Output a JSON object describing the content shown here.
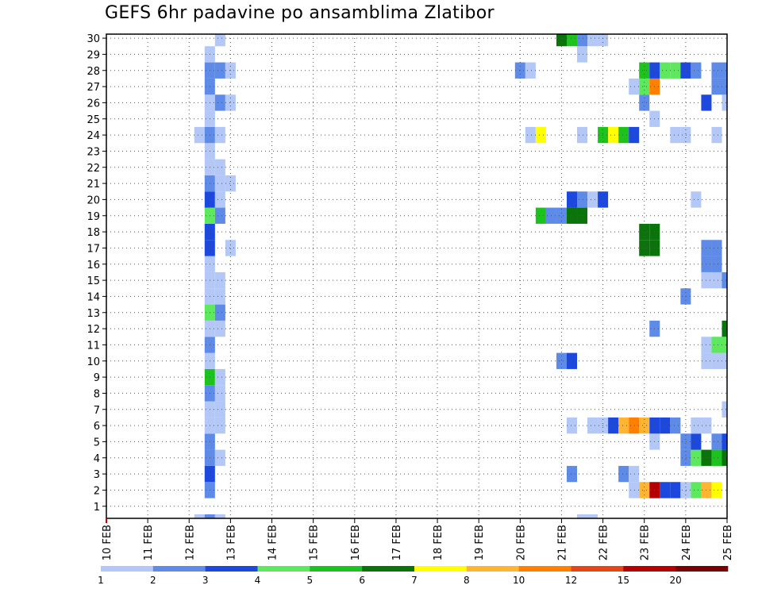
{
  "chart_data": {
    "type": "heatmap",
    "title": "GEFS 6hr padavine po ansamblima Zlatibor",
    "xlabel": "",
    "ylabel": "",
    "x_ticks": [
      "10 FEB",
      "11 FEB",
      "12 FEB",
      "13 FEB",
      "14 FEB",
      "15 FEB",
      "16 FEB",
      "17 FEB",
      "18 FEB",
      "19 FEB",
      "20 FEB",
      "21 FEB",
      "22 FEB",
      "23 FEB",
      "24 FEB",
      "25 FEB"
    ],
    "y_ticks": [
      1,
      2,
      3,
      4,
      5,
      6,
      7,
      8,
      9,
      10,
      11,
      12,
      13,
      14,
      15,
      16,
      17,
      18,
      19,
      20,
      21,
      22,
      23,
      24,
      25,
      26,
      27,
      28,
      29,
      30
    ],
    "xlim_days": [
      10,
      25
    ],
    "ylim": [
      0.25,
      30.25
    ],
    "time_step_hours": 6,
    "grid": "dotted",
    "legend_placement": "bottom",
    "levels": [
      "1",
      "2",
      "3",
      "4",
      "5",
      "6",
      "7",
      "8",
      "10",
      "12",
      "15",
      "20"
    ],
    "colors": [
      "#b3c8f7",
      "#5e8ae8",
      "#1c48de",
      "#5ee85e",
      "#1ec21e",
      "#0a740a",
      "#ffff00",
      "#ffb432",
      "#ff7f00",
      "#e64614",
      "#b40000",
      "#780000"
    ],
    "cells": [
      {
        "m": 0,
        "d": 12.25,
        "c": 0
      },
      {
        "m": 0,
        "d": 12.5,
        "c": 1
      },
      {
        "m": 0,
        "d": 12.75,
        "c": 0
      },
      {
        "m": 0,
        "d": 21.5,
        "c": 0
      },
      {
        "m": 0,
        "d": 21.75,
        "c": 0
      },
      {
        "m": 2,
        "d": 12.5,
        "c": 1
      },
      {
        "m": 2,
        "d": 22.75,
        "c": 0
      },
      {
        "m": 2,
        "d": 23.0,
        "c": 7
      },
      {
        "m": 2,
        "d": 23.25,
        "c": 10
      },
      {
        "m": 2,
        "d": 23.5,
        "c": 2
      },
      {
        "m": 2,
        "d": 23.75,
        "c": 2
      },
      {
        "m": 2,
        "d": 24.0,
        "c": 0
      },
      {
        "m": 2,
        "d": 24.25,
        "c": 3
      },
      {
        "m": 2,
        "d": 24.5,
        "c": 7
      },
      {
        "m": 2,
        "d": 24.75,
        "c": 6
      },
      {
        "m": 3,
        "d": 12.5,
        "c": 2
      },
      {
        "m": 3,
        "d": 21.25,
        "c": 1
      },
      {
        "m": 3,
        "d": 22.5,
        "c": 1
      },
      {
        "m": 3,
        "d": 22.75,
        "c": 0
      },
      {
        "m": 4,
        "d": 12.5,
        "c": 1
      },
      {
        "m": 4,
        "d": 12.75,
        "c": 0
      },
      {
        "m": 4,
        "d": 24.0,
        "c": 1
      },
      {
        "m": 4,
        "d": 24.25,
        "c": 3
      },
      {
        "m": 4,
        "d": 24.5,
        "c": 5
      },
      {
        "m": 4,
        "d": 24.75,
        "c": 4
      },
      {
        "m": 4,
        "d": 25.0,
        "c": 5
      },
      {
        "m": 5,
        "d": 12.5,
        "c": 1
      },
      {
        "m": 5,
        "d": 23.25,
        "c": 0
      },
      {
        "m": 5,
        "d": 24.0,
        "c": 1
      },
      {
        "m": 5,
        "d": 24.25,
        "c": 2
      },
      {
        "m": 5,
        "d": 24.75,
        "c": 1
      },
      {
        "m": 5,
        "d": 25.0,
        "c": 2
      },
      {
        "m": 6,
        "d": 12.5,
        "c": 0
      },
      {
        "m": 6,
        "d": 12.75,
        "c": 0
      },
      {
        "m": 6,
        "d": 21.25,
        "c": 0
      },
      {
        "m": 6,
        "d": 21.75,
        "c": 0
      },
      {
        "m": 6,
        "d": 22.0,
        "c": 0
      },
      {
        "m": 6,
        "d": 22.25,
        "c": 2
      },
      {
        "m": 6,
        "d": 22.5,
        "c": 7
      },
      {
        "m": 6,
        "d": 22.75,
        "c": 8
      },
      {
        "m": 6,
        "d": 23.0,
        "c": 7
      },
      {
        "m": 6,
        "d": 23.25,
        "c": 2
      },
      {
        "m": 6,
        "d": 23.5,
        "c": 2
      },
      {
        "m": 6,
        "d": 23.75,
        "c": 1
      },
      {
        "m": 6,
        "d": 24.25,
        "c": 0
      },
      {
        "m": 6,
        "d": 24.5,
        "c": 0
      },
      {
        "m": 7,
        "d": 12.5,
        "c": 0
      },
      {
        "m": 7,
        "d": 12.75,
        "c": 0
      },
      {
        "m": 7,
        "d": 25.0,
        "c": 0
      },
      {
        "m": 8,
        "d": 12.5,
        "c": 1
      },
      {
        "m": 8,
        "d": 12.75,
        "c": 0
      },
      {
        "m": 9,
        "d": 12.5,
        "c": 4
      },
      {
        "m": 9,
        "d": 12.75,
        "c": 0
      },
      {
        "m": 10,
        "d": 12.5,
        "c": 0
      },
      {
        "m": 10,
        "d": 21.0,
        "c": 1
      },
      {
        "m": 10,
        "d": 21.25,
        "c": 2
      },
      {
        "m": 10,
        "d": 24.5,
        "c": 0
      },
      {
        "m": 10,
        "d": 24.75,
        "c": 0
      },
      {
        "m": 10,
        "d": 25.0,
        "c": 0
      },
      {
        "m": 11,
        "d": 12.5,
        "c": 1
      },
      {
        "m": 11,
        "d": 24.5,
        "c": 0
      },
      {
        "m": 11,
        "d": 24.75,
        "c": 3
      },
      {
        "m": 11,
        "d": 25.0,
        "c": 3
      },
      {
        "m": 12,
        "d": 12.5,
        "c": 0
      },
      {
        "m": 12,
        "d": 12.75,
        "c": 0
      },
      {
        "m": 12,
        "d": 23.25,
        "c": 1
      },
      {
        "m": 12,
        "d": 25.0,
        "c": 5
      },
      {
        "m": 13,
        "d": 12.5,
        "c": 3
      },
      {
        "m": 13,
        "d": 12.75,
        "c": 1
      },
      {
        "m": 14,
        "d": 12.5,
        "c": 0
      },
      {
        "m": 14,
        "d": 12.75,
        "c": 0
      },
      {
        "m": 14,
        "d": 24.0,
        "c": 1
      },
      {
        "m": 15,
        "d": 12.5,
        "c": 0
      },
      {
        "m": 15,
        "d": 12.75,
        "c": 0
      },
      {
        "m": 15,
        "d": 24.5,
        "c": 0
      },
      {
        "m": 15,
        "d": 24.75,
        "c": 0
      },
      {
        "m": 15,
        "d": 25.0,
        "c": 1
      },
      {
        "m": 16,
        "d": 12.5,
        "c": 0
      },
      {
        "m": 16,
        "d": 24.5,
        "c": 1
      },
      {
        "m": 16,
        "d": 24.75,
        "c": 1
      },
      {
        "m": 17,
        "d": 12.5,
        "c": 2
      },
      {
        "m": 17,
        "d": 13.0,
        "c": 0
      },
      {
        "m": 17,
        "d": 23.0,
        "c": 5
      },
      {
        "m": 17,
        "d": 23.25,
        "c": 5
      },
      {
        "m": 17,
        "d": 24.5,
        "c": 1
      },
      {
        "m": 17,
        "d": 24.75,
        "c": 1
      },
      {
        "m": 18,
        "d": 12.5,
        "c": 2
      },
      {
        "m": 18,
        "d": 23.0,
        "c": 5
      },
      {
        "m": 18,
        "d": 23.25,
        "c": 5
      },
      {
        "m": 19,
        "d": 12.5,
        "c": 3
      },
      {
        "m": 19,
        "d": 12.75,
        "c": 1
      },
      {
        "m": 19,
        "d": 20.5,
        "c": 4
      },
      {
        "m": 19,
        "d": 20.75,
        "c": 1
      },
      {
        "m": 19,
        "d": 21.0,
        "c": 1
      },
      {
        "m": 19,
        "d": 21.25,
        "c": 5
      },
      {
        "m": 19,
        "d": 21.5,
        "c": 5
      },
      {
        "m": 20,
        "d": 12.5,
        "c": 2
      },
      {
        "m": 20,
        "d": 12.75,
        "c": 0
      },
      {
        "m": 20,
        "d": 21.25,
        "c": 2
      },
      {
        "m": 20,
        "d": 21.5,
        "c": 1
      },
      {
        "m": 20,
        "d": 21.75,
        "c": 0
      },
      {
        "m": 20,
        "d": 22.0,
        "c": 2
      },
      {
        "m": 20,
        "d": 24.25,
        "c": 0
      },
      {
        "m": 21,
        "d": 12.5,
        "c": 1
      },
      {
        "m": 21,
        "d": 12.75,
        "c": 0
      },
      {
        "m": 21,
        "d": 13.0,
        "c": 0
      },
      {
        "m": 22,
        "d": 12.5,
        "c": 0
      },
      {
        "m": 22,
        "d": 12.75,
        "c": 0
      },
      {
        "m": 23,
        "d": 12.5,
        "c": 0
      },
      {
        "m": 24,
        "d": 12.25,
        "c": 0
      },
      {
        "m": 24,
        "d": 12.5,
        "c": 1
      },
      {
        "m": 24,
        "d": 12.75,
        "c": 0
      },
      {
        "m": 24,
        "d": 20.25,
        "c": 0
      },
      {
        "m": 24,
        "d": 20.5,
        "c": 6
      },
      {
        "m": 24,
        "d": 21.5,
        "c": 0
      },
      {
        "m": 24,
        "d": 22.0,
        "c": 4
      },
      {
        "m": 24,
        "d": 22.25,
        "c": 6
      },
      {
        "m": 24,
        "d": 22.5,
        "c": 4
      },
      {
        "m": 24,
        "d": 22.75,
        "c": 2
      },
      {
        "m": 24,
        "d": 23.75,
        "c": 0
      },
      {
        "m": 24,
        "d": 24.0,
        "c": 0
      },
      {
        "m": 24,
        "d": 24.75,
        "c": 0
      },
      {
        "m": 25,
        "d": 12.5,
        "c": 0
      },
      {
        "m": 25,
        "d": 23.25,
        "c": 0
      },
      {
        "m": 26,
        "d": 12.5,
        "c": 0
      },
      {
        "m": 26,
        "d": 12.75,
        "c": 1
      },
      {
        "m": 26,
        "d": 13.0,
        "c": 0
      },
      {
        "m": 26,
        "d": 23.0,
        "c": 1
      },
      {
        "m": 26,
        "d": 24.5,
        "c": 2
      },
      {
        "m": 26,
        "d": 25.0,
        "c": 0
      },
      {
        "m": 27,
        "d": 12.5,
        "c": 1
      },
      {
        "m": 27,
        "d": 22.75,
        "c": 0
      },
      {
        "m": 27,
        "d": 23.0,
        "c": 3
      },
      {
        "m": 27,
        "d": 23.25,
        "c": 8
      },
      {
        "m": 27,
        "d": 24.75,
        "c": 1
      },
      {
        "m": 27,
        "d": 25.0,
        "c": 1
      },
      {
        "m": 28,
        "d": 12.5,
        "c": 1
      },
      {
        "m": 28,
        "d": 12.75,
        "c": 1
      },
      {
        "m": 28,
        "d": 13.0,
        "c": 0
      },
      {
        "m": 28,
        "d": 20.0,
        "c": 1
      },
      {
        "m": 28,
        "d": 20.25,
        "c": 0
      },
      {
        "m": 28,
        "d": 23.0,
        "c": 4
      },
      {
        "m": 28,
        "d": 23.25,
        "c": 2
      },
      {
        "m": 28,
        "d": 23.5,
        "c": 3
      },
      {
        "m": 28,
        "d": 23.75,
        "c": 3
      },
      {
        "m": 28,
        "d": 24.0,
        "c": 2
      },
      {
        "m": 28,
        "d": 24.25,
        "c": 1
      },
      {
        "m": 28,
        "d": 24.75,
        "c": 1
      },
      {
        "m": 28,
        "d": 25.0,
        "c": 1
      },
      {
        "m": 29,
        "d": 12.5,
        "c": 0
      },
      {
        "m": 29,
        "d": 21.5,
        "c": 0
      },
      {
        "m": 30,
        "d": 12.75,
        "c": 0
      },
      {
        "m": 30,
        "d": 21.0,
        "c": 5
      },
      {
        "m": 30,
        "d": 21.25,
        "c": 4
      },
      {
        "m": 30,
        "d": 21.5,
        "c": 1
      },
      {
        "m": 30,
        "d": 21.75,
        "c": 0
      },
      {
        "m": 30,
        "d": 22.0,
        "c": 0
      }
    ]
  }
}
